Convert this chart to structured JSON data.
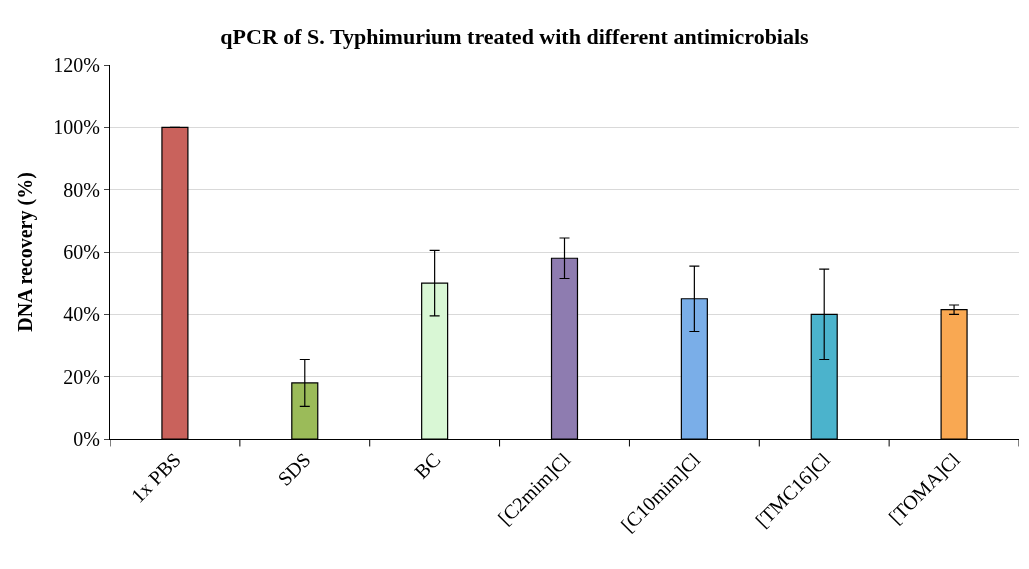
{
  "chart_data": {
    "type": "bar",
    "title": "qPCR of S. Typhimurium treated with different antimicrobials",
    "ylabel": "DNA recovery (%)",
    "categories": [
      "1x PBS",
      "SDS",
      "BC",
      "[C2mim]Cl",
      "[C10mim]Cl",
      "[TMC16]Cl",
      "[TOMA]Cl"
    ],
    "values": [
      100,
      18,
      50,
      58,
      45,
      40,
      41.5
    ],
    "errors": [
      0,
      7.5,
      10.5,
      6.5,
      10.5,
      14.5,
      1.5
    ],
    "colors": [
      "#c9625c",
      "#9bbb59",
      "#d9f7d5",
      "#8e7cb0",
      "#7aaee8",
      "#4bb3cc",
      "#f9a852"
    ],
    "ylim": [
      0,
      120
    ],
    "yticks": [
      {
        "value": 0,
        "label": "0%"
      },
      {
        "value": 20,
        "label": "20%"
      },
      {
        "value": 40,
        "label": "40%"
      },
      {
        "value": 60,
        "label": "60%"
      },
      {
        "value": 80,
        "label": "80%"
      },
      {
        "value": 100,
        "label": "100%"
      },
      {
        "value": 120,
        "label": "120%"
      }
    ],
    "grid": "y"
  }
}
